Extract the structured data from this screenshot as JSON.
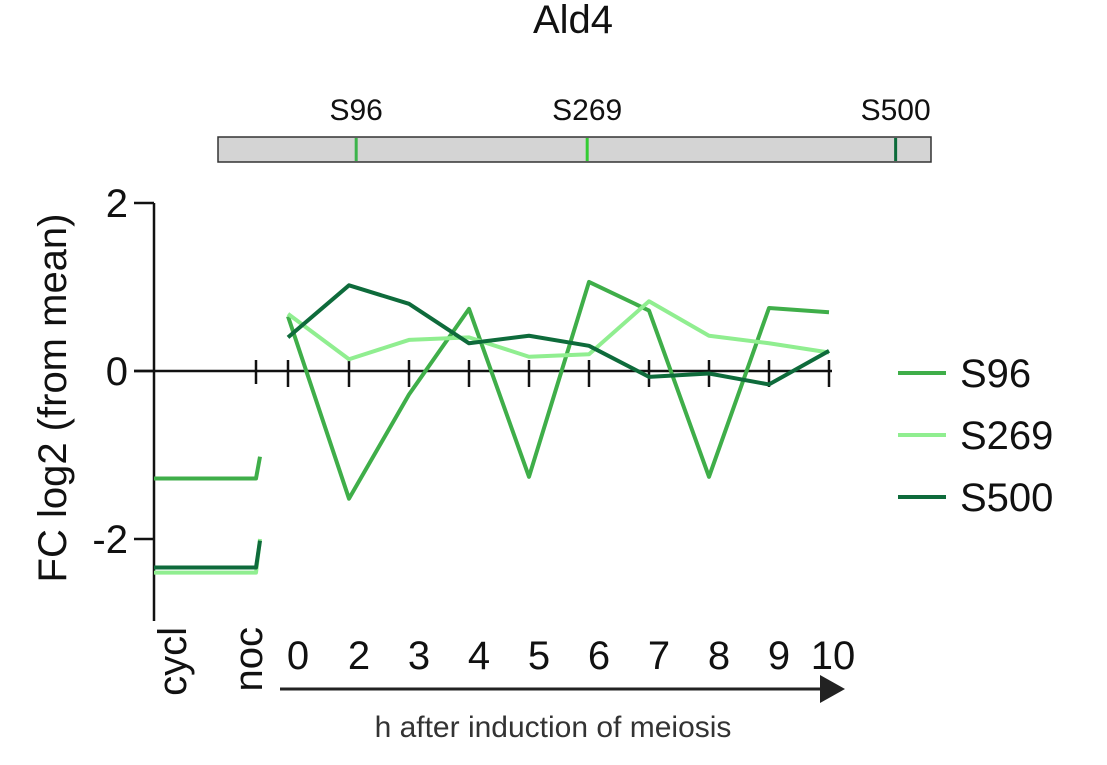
{
  "chart_data": {
    "type": "line",
    "title": "Ald4",
    "ylabel": "FC log2 (from mean)",
    "xlabel": "h after induction of meiosis",
    "ylim": [
      -3,
      2
    ],
    "yticks": [
      2,
      0,
      -2
    ],
    "ytick_labels": [
      "2",
      "0",
      "-2"
    ],
    "x": [
      0,
      2,
      3,
      4,
      5,
      6,
      7,
      8,
      9,
      10
    ],
    "x_labels": [
      "0",
      "2",
      "3",
      "4",
      "5",
      "6",
      "7",
      "8",
      "9",
      "10"
    ],
    "control_labels": [
      "cycl",
      "noc"
    ],
    "legend_position": "right",
    "grid": false,
    "protein_map": {
      "length": 519,
      "sites": [
        {
          "name": "S96",
          "position": 96,
          "color": "#3cb44b"
        },
        {
          "name": "S269",
          "position": 269,
          "color": "#33cc33"
        },
        {
          "name": "S500",
          "position": 500,
          "color": "#0b6b3a"
        }
      ]
    },
    "series": [
      {
        "name": "S96",
        "color": "#3fae49",
        "cycl": -1.28,
        "noc": -1.28,
        "noc_end": -1.02,
        "values": [
          0.65,
          -1.52,
          -0.28,
          0.74,
          -1.26,
          1.06,
          0.72,
          -1.26,
          0.75,
          0.7
        ]
      },
      {
        "name": "S269",
        "color": "#90ee90",
        "cycl": -2.4,
        "noc": -2.4,
        "noc_end": -2.0,
        "values": [
          0.68,
          0.14,
          0.37,
          0.4,
          0.17,
          0.2,
          0.83,
          0.42,
          0.33,
          0.22
        ]
      },
      {
        "name": "S500",
        "color": "#0e6b3b",
        "cycl": -2.34,
        "noc": -2.34,
        "noc_end": -2.02,
        "values": [
          0.4,
          1.02,
          0.8,
          0.33,
          0.42,
          0.3,
          -0.07,
          -0.03,
          -0.16,
          0.24
        ]
      }
    ]
  }
}
